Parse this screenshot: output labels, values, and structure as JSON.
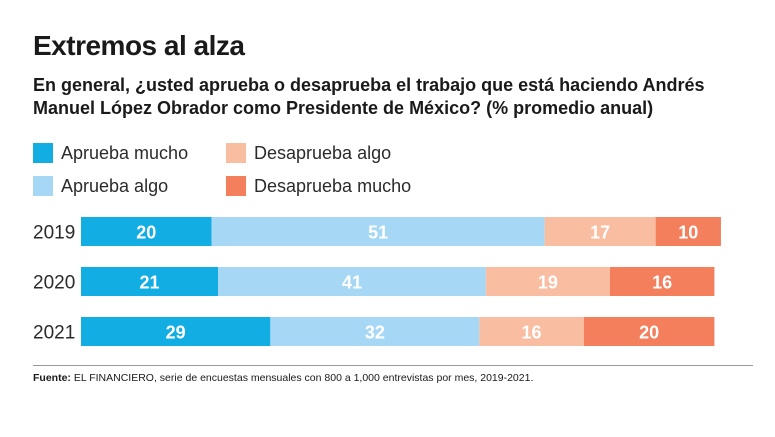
{
  "title": "Extremos al alza",
  "subtitle": "En general, ¿usted aprueba o desaprueba el trabajo que está haciendo Andrés Manuel López Obrador como Presidente de México? (% promedio anual)",
  "colors": {
    "aprueba_mucho": "#12ade3",
    "aprueba_algo": "#a6d8f5",
    "desaprueba_algo": "#f9bda1",
    "desaprueba_mucho": "#f37f5c"
  },
  "source": {
    "label": "Fuente:",
    "text": "EL FINANCIERO, serie de encuestas mensuales con 800 a 1,000 entrevistas por mes, 2019-2021."
  },
  "chart_data": {
    "type": "bar",
    "orientation": "horizontal",
    "stacked": true,
    "title": "Extremos al alza",
    "subtitle": "En general, ¿usted aprueba o desaprueba el trabajo que está haciendo Andrés Manuel López Obrador como Presidente de México? (% promedio anual)",
    "categories": [
      "2019",
      "2020",
      "2021"
    ],
    "series": [
      {
        "name": "Aprueba mucho",
        "color": "#12ade3",
        "values": [
          20,
          21,
          29
        ]
      },
      {
        "name": "Aprueba algo",
        "color": "#a6d8f5",
        "values": [
          51,
          41,
          32
        ]
      },
      {
        "name": "Desaprueba algo",
        "color": "#f9bda1",
        "values": [
          17,
          19,
          16
        ]
      },
      {
        "name": "Desaprueba mucho",
        "color": "#f37f5c",
        "values": [
          10,
          16,
          20
        ]
      }
    ],
    "legend_position": "top-left",
    "grid": false
  }
}
